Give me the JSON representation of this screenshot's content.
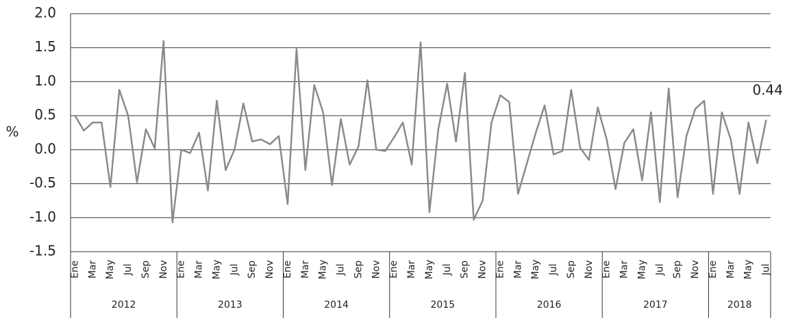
{
  "chart_data": {
    "type": "line",
    "ylabel": "%",
    "categories": [
      "Ene",
      null,
      "Mar",
      null,
      "May",
      null,
      "Jul",
      null,
      "Sep",
      null,
      "Nov",
      null,
      "Ene",
      null,
      "Mar",
      null,
      "May",
      null,
      "Jul",
      null,
      "Sep",
      null,
      "Nov",
      null,
      "Ene",
      null,
      "Mar",
      null,
      "May",
      null,
      "Jul",
      null,
      "Sep",
      null,
      "Nov",
      null,
      "Ene",
      null,
      "Mar",
      null,
      "May",
      null,
      "Jul",
      null,
      "Sep",
      null,
      "Nov",
      null,
      "Ene",
      null,
      "Mar",
      null,
      "May",
      null,
      "Jul",
      null,
      "Sep",
      null,
      "Nov",
      null,
      "Ene",
      null,
      "Mar",
      null,
      "May",
      null,
      "Jul",
      null,
      "Sep",
      null,
      "Nov",
      null,
      "Ene",
      null,
      "Mar",
      null,
      "May",
      null,
      "Jul"
    ],
    "years": [
      "2012",
      "2013",
      "2014",
      "2015",
      "2016",
      "2017",
      "2018"
    ],
    "series": [
      {
        "color": "#8a8a8a",
        "values": [
          0.5,
          0.28,
          0.4,
          0.4,
          -0.55,
          0.88,
          0.5,
          -0.48,
          0.3,
          0.02,
          1.6,
          -1.07,
          0.0,
          -0.05,
          0.25,
          -0.6,
          0.72,
          -0.3,
          0.0,
          0.68,
          0.12,
          0.15,
          0.08,
          0.2,
          -0.8,
          1.48,
          -0.3,
          0.95,
          0.55,
          -0.52,
          0.45,
          -0.22,
          0.05,
          1.02,
          0.0,
          -0.02,
          0.18,
          0.4,
          -0.22,
          1.58,
          -0.92,
          0.3,
          0.97,
          0.12,
          1.13,
          -1.03,
          -0.75,
          0.4,
          0.8,
          0.7,
          -0.65,
          -0.2,
          0.25,
          0.65,
          -0.07,
          -0.02,
          0.88,
          0.03,
          -0.15,
          0.62,
          0.15,
          -0.58,
          0.1,
          0.3,
          -0.45,
          0.55,
          -0.77,
          0.9,
          -0.7,
          0.2,
          0.6,
          0.72,
          -0.65,
          0.55,
          0.15,
          -0.65,
          0.4,
          -0.2,
          0.44
        ]
      }
    ],
    "annotation": "0.44",
    "ylim": [
      -1.5,
      2.0
    ],
    "yticks": [
      {
        "value": -1.5,
        "label": "-1.5"
      },
      {
        "value": -1.0,
        "label": "-1.0"
      },
      -0.5,
      {
        "value": 0.0,
        "label": "0.0"
      },
      0.5,
      {
        "value": 1.0,
        "label": "1.0"
      },
      1.5,
      {
        "value": 2.0,
        "label": "2.0"
      }
    ],
    "grid": true
  }
}
